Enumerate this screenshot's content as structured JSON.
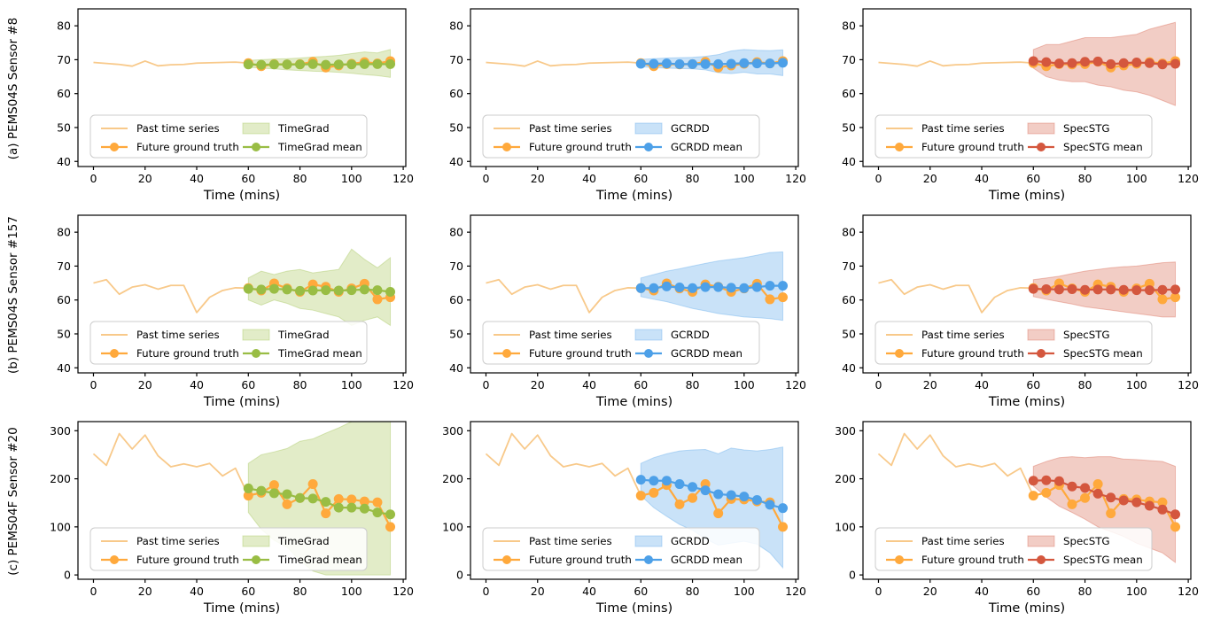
{
  "figure": {
    "xlabel": "Time (mins)",
    "legend": {
      "past": "Past time series",
      "truth": "Future ground truth"
    },
    "colors": {
      "past_line": "#F8C98A",
      "ground_truth": "#FFA93C",
      "timegrad": "#99BD44",
      "timegrad_band": "#E2ECC8",
      "gcrdd": "#4DA0E8",
      "gcrdd_band": "#C9E2F8",
      "specstg": "#D4573E",
      "specstg_band": "#F2CDC5",
      "legend_border": "#CCCCCC",
      "axis": "#000000"
    }
  },
  "chart_data": {
    "type": "line",
    "xlabel": "Time (mins)",
    "xticks": [
      0,
      20,
      40,
      60,
      80,
      100,
      120
    ],
    "xlim": [
      -6,
      121
    ],
    "x_past": [
      0,
      5,
      10,
      15,
      20,
      25,
      30,
      35,
      40,
      45,
      50,
      55,
      60
    ],
    "x_future": [
      60,
      65,
      70,
      75,
      80,
      85,
      90,
      95,
      100,
      105,
      110,
      115
    ],
    "legend_past": "Past time series",
    "legend_truth": "Future ground truth",
    "rows": [
      {
        "label": "(a) PEMS04S Sensor #8",
        "ylim": [
          38.5,
          85
        ],
        "yticks": [
          40,
          50,
          60,
          70,
          80
        ],
        "past": [
          69.2,
          68.9,
          68.6,
          68.1,
          69.6,
          68.2,
          68.5,
          68.6,
          69.0,
          69.1,
          69.2,
          69.3,
          69.0
        ],
        "ground_truth": [
          69.0,
          68.1,
          68.7,
          68.6,
          68.7,
          69.4,
          67.7,
          68.3,
          68.8,
          69.3,
          68.9,
          69.6
        ],
        "models": [
          {
            "name": "TimeGrad",
            "mean_label": "TimeGrad mean",
            "color": "#99BD44",
            "band_color": "#E2ECC8",
            "mean": [
              68.6,
              68.5,
              68.6,
              68.6,
              68.6,
              68.7,
              68.5,
              68.6,
              68.6,
              68.7,
              68.7,
              68.7
            ],
            "band_lower": [
              67.8,
              67.5,
              67.3,
              67.0,
              66.8,
              66.6,
              66.5,
              66.3,
              66.0,
              65.6,
              65.3,
              64.8
            ],
            "band_upper": [
              69.8,
              70.0,
              70.2,
              70.3,
              70.5,
              70.8,
              71.0,
              71.3,
              71.8,
              72.3,
              72.0,
              73.0
            ]
          },
          {
            "name": "GCRDD",
            "mean_label": "GCRDD mean",
            "color": "#4DA0E8",
            "band_color": "#C9E2F8",
            "mean": [
              68.8,
              68.8,
              68.9,
              68.7,
              68.7,
              68.7,
              68.7,
              68.8,
              69.0,
              68.9,
              68.9,
              69.1
            ],
            "band_lower": [
              67.9,
              67.7,
              67.5,
              67.4,
              67.3,
              67.0,
              66.2,
              65.9,
              66.3,
              65.8,
              65.8,
              65.3
            ],
            "band_upper": [
              70.1,
              70.3,
              70.5,
              70.6,
              70.7,
              71.0,
              71.5,
              72.6,
              73.0,
              72.8,
              72.7,
              72.9
            ]
          },
          {
            "name": "SpecSTG",
            "mean_label": "SpecSTG mean",
            "color": "#D4573E",
            "band_color": "#F2CDC5",
            "mean": [
              69.6,
              69.3,
              68.9,
              69.0,
              69.4,
              69.5,
              68.7,
              69.0,
              69.2,
              69.0,
              68.6,
              68.8
            ],
            "band_lower": [
              67.5,
              65.0,
              64.0,
              63.5,
              63.5,
              62.5,
              62.0,
              61.0,
              60.5,
              59.5,
              58.0,
              56.5
            ],
            "band_upper": [
              73.0,
              74.5,
              74.5,
              75.5,
              76.5,
              76.5,
              76.5,
              77.0,
              77.5,
              79.0,
              80.0,
              81.0
            ]
          }
        ]
      },
      {
        "label": "(b) PEMS04S Sensor #157",
        "ylim": [
          38.5,
          85
        ],
        "yticks": [
          40,
          50,
          60,
          70,
          80
        ],
        "past": [
          65.0,
          66.0,
          61.7,
          63.8,
          64.5,
          63.2,
          64.3,
          64.3,
          56.3,
          60.8,
          62.8,
          63.6,
          63.5
        ],
        "ground_truth": [
          63.5,
          62.8,
          64.9,
          63.4,
          62.4,
          64.6,
          63.9,
          62.4,
          63.4,
          64.8,
          60.2,
          60.8
        ],
        "models": [
          {
            "name": "TimeGrad",
            "mean_label": "TimeGrad mean",
            "color": "#99BD44",
            "band_color": "#E2ECC8",
            "mean": [
              63.3,
              63.1,
              63.3,
              63.1,
              62.7,
              62.8,
              62.9,
              62.8,
              62.9,
              63.1,
              62.9,
              62.4
            ],
            "band_lower": [
              60.0,
              58.5,
              60.0,
              59.0,
              57.5,
              57.0,
              56.0,
              55.0,
              52.5,
              54.0,
              55.0,
              52.5
            ],
            "band_upper": [
              66.5,
              68.5,
              67.5,
              68.5,
              69.0,
              68.0,
              68.5,
              69.0,
              75.0,
              72.0,
              69.5,
              72.5
            ]
          },
          {
            "name": "GCRDD",
            "mean_label": "GCRDD mean",
            "color": "#4DA0E8",
            "band_color": "#C9E2F8",
            "mean": [
              63.5,
              63.5,
              64.0,
              63.7,
              63.5,
              63.8,
              63.8,
              63.6,
              63.5,
              63.8,
              64.2,
              64.2
            ],
            "band_lower": [
              61.0,
              60.2,
              59.5,
              58.5,
              57.5,
              56.8,
              56.0,
              55.5,
              55.0,
              54.8,
              54.5,
              54.0
            ],
            "band_upper": [
              66.5,
              67.5,
              68.5,
              69.2,
              70.0,
              70.8,
              71.5,
              72.0,
              72.5,
              73.2,
              74.0,
              74.2
            ]
          },
          {
            "name": "SpecSTG",
            "mean_label": "SpecSTG mean",
            "color": "#D4573E",
            "band_color": "#F2CDC5",
            "mean": [
              63.3,
              63.2,
              63.1,
              63.2,
              63.0,
              63.1,
              63.1,
              63.0,
              62.9,
              62.9,
              63.0,
              63.1
            ],
            "band_lower": [
              61.0,
              60.2,
              59.5,
              58.8,
              58.0,
              57.5,
              57.0,
              56.5,
              56.0,
              55.5,
              55.0,
              55.0
            ],
            "band_upper": [
              66.0,
              66.5,
              67.0,
              67.8,
              68.5,
              69.0,
              69.5,
              69.8,
              70.0,
              70.5,
              71.0,
              71.2
            ]
          }
        ]
      },
      {
        "label": "(c) PEMS04F Sensor #20",
        "ylim": [
          -9,
          319
        ],
        "yticks": [
          0,
          100,
          200,
          300
        ],
        "past": [
          252,
          228,
          294,
          262,
          291,
          248,
          225,
          231,
          225,
          232,
          206,
          222,
          165
        ],
        "ground_truth": [
          165,
          171,
          187,
          147,
          160,
          189,
          128,
          158,
          157,
          153,
          151,
          100
        ],
        "models": [
          {
            "name": "TimeGrad",
            "mean_label": "TimeGrad mean",
            "color": "#99BD44",
            "band_color": "#E2ECC8",
            "mean": [
              180,
              175,
              170,
              168,
              160,
              159,
              152,
              140,
              140,
              138,
              130,
              126
            ],
            "band_lower": [
              130,
              95,
              72,
              58,
              30,
              8,
              0,
              0,
              0,
              0,
              0,
              0
            ],
            "band_upper": [
              232,
              250,
              256,
              263,
              278,
              283,
              295,
              306,
              319,
              319,
              319,
              319
            ]
          },
          {
            "name": "GCRDD",
            "mean_label": "GCRDD mean",
            "color": "#4DA0E8",
            "band_color": "#C9E2F8",
            "mean": [
              198,
              196,
              196,
              189,
              183,
              176,
              168,
              166,
              163,
              156,
              146,
              139
            ],
            "band_lower": [
              165,
              140,
              122,
              105,
              93,
              75,
              62,
              66,
              70,
              64,
              46,
              15
            ],
            "band_upper": [
              232,
              244,
              252,
              258,
              260,
              261,
              252,
              264,
              260,
              258,
              261,
              266
            ]
          },
          {
            "name": "SpecSTG",
            "mean_label": "SpecSTG mean",
            "color": "#D4573E",
            "band_color": "#F2CDC5",
            "mean": [
              196,
              197,
              195,
              184,
              181,
              169,
              161,
              155,
              151,
              144,
              136,
              126
            ],
            "band_lower": [
              185,
              162,
              143,
              130,
              116,
              100,
              90,
              80,
              66,
              56,
              46,
              26
            ],
            "band_upper": [
              226,
              236,
              244,
              246,
              244,
              246,
              246,
              241,
              240,
              238,
              236,
              226
            ]
          }
        ]
      }
    ]
  }
}
